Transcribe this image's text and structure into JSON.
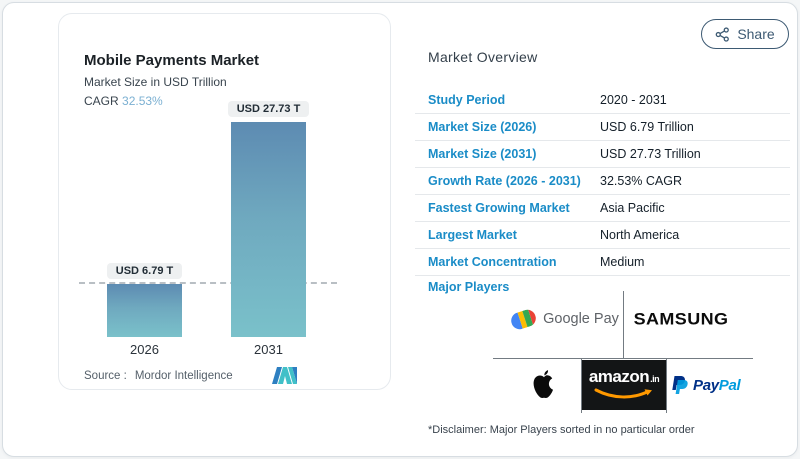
{
  "share": {
    "label": "Share"
  },
  "chart_panel": {
    "title": "Mobile Payments Market",
    "subtitle": "Market Size in USD Trillion",
    "cagr_label": "CAGR",
    "cagr_value": "32.53%",
    "source_label": "Source :",
    "source_value": "Mordor Intelligence"
  },
  "chart_data": {
    "type": "bar",
    "title": "Mobile Payments Market",
    "ylabel": "Market Size in USD Trillion",
    "categories": [
      "2026",
      "2031"
    ],
    "values": [
      6.79,
      27.73
    ],
    "unit": "USD Trillion",
    "bar_labels": [
      "USD 6.79 T",
      "USD 27.73 T"
    ],
    "cagr": "32.53%",
    "reference_line": 6.79,
    "ylim": [
      0,
      27.73
    ],
    "grid": false,
    "bar_gradient": [
      "#5d8bb2",
      "#7ac1ca"
    ]
  },
  "overview": {
    "heading": "Market Overview",
    "rows": [
      {
        "label": "Study Period",
        "value": "2020 - 2031"
      },
      {
        "label": "Market Size (2026)",
        "value": "USD 6.79 Trillion"
      },
      {
        "label": "Market Size (2031)",
        "value": "USD 27.73 Trillion"
      },
      {
        "label": "Growth Rate (2026 - 2031)",
        "value": "32.53% CAGR"
      },
      {
        "label": "Fastest Growing Market",
        "value": "Asia Pacific"
      },
      {
        "label": "Largest Market",
        "value": "North America"
      },
      {
        "label": "Market Concentration",
        "value": "Medium"
      }
    ],
    "major_players_label": "Major Players",
    "players": [
      "Google Pay",
      "Samsung",
      "Apple",
      "Amazon.in",
      "PayPal"
    ],
    "wordmarks": {
      "google_pay": "Google Pay",
      "samsung": "SAMSUNG",
      "amazon": "amazon",
      "amazon_suffix": ".in",
      "paypal_p1": "Pay",
      "paypal_p2": "Pal"
    },
    "disclaimer": "*Disclaimer: Major Players sorted in no particular order"
  },
  "colors": {
    "accent_blue": "#1a8cc7",
    "cagr_blue": "#7bb0d2",
    "share_border": "#3d5a73",
    "bar_top": "#5d8bb2",
    "bar_bottom": "#7ac1ca",
    "amazon_orange": "#ff9900",
    "paypal_dark": "#003087",
    "paypal_light": "#009cde"
  }
}
